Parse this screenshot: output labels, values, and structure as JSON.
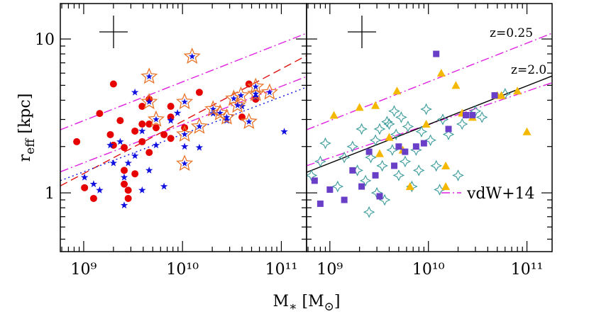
{
  "xlabel": [
    "M",
    "∗",
    " [M",
    "⊙",
    "]"
  ],
  "ylabel": [
    "r",
    "eff",
    " [kpc]"
  ],
  "chart_data": [
    {
      "type": "scatter",
      "xlog": true,
      "ylog": true,
      "xlim": [
        580000000.0,
        180000000000.0
      ],
      "ylim": [
        0.415,
        17
      ],
      "xticks": [
        {
          "value": 1000000000.0,
          "label": "10⁹"
        },
        {
          "value": 10000000000.0,
          "label": "10¹⁰"
        },
        {
          "value": 100000000000.0,
          "label": "10¹¹"
        }
      ],
      "xticks_minor": [
        600000000.0,
        700000000.0,
        800000000.0,
        900000000.0,
        2000000000.0,
        3000000000.0,
        4000000000.0,
        5000000000.0,
        6000000000.0,
        7000000000.0,
        8000000000.0,
        9000000000.0,
        20000000000.0,
        30000000000.0,
        40000000000.0,
        50000000000.0,
        60000000000.0,
        70000000000.0,
        80000000000.0,
        90000000000.0
      ],
      "yticks": [
        1,
        10
      ],
      "yticks_minor": [
        0.5,
        0.6,
        0.7,
        0.8,
        0.9,
        2,
        3,
        4,
        5,
        6,
        7,
        8,
        9
      ],
      "show_ytick_labels": true,
      "lines": [
        {
          "x": [
            580000000.0,
            180000000000.0
          ],
          "y": [
            2.57,
            10.9
          ],
          "color": "#e020e0",
          "style": "dashdot"
        },
        {
          "x": [
            580000000.0,
            180000000000.0
          ],
          "y": [
            1.37,
            5.7
          ],
          "color": "#e020e0",
          "style": "dashdot"
        },
        {
          "x": [
            580000000.0,
            180000000000.0
          ],
          "y": [
            1.11,
            7.8
          ],
          "color": "#e01010",
          "style": "dashed"
        },
        {
          "x": [
            580000000.0,
            180000000000.0
          ],
          "y": [
            1.2,
            4.86
          ],
          "color": "#1010e0",
          "style": "dotted"
        }
      ],
      "series": [
        {
          "marker": "circle",
          "color": "#e60000",
          "x": [
            850000000.0,
            1020000000.0,
            1260000000.0,
            1450000000.0,
            1860000000.0,
            2000000000.0,
            2000000000.0,
            2340000000.0,
            2570000000.0,
            2570000000.0,
            2570000000.0,
            2820000000.0,
            2820000000.0,
            3300000000.0,
            3300000000.0,
            3900000000.0,
            3900000000.0,
            3900000000.0,
            4600000000.0,
            4600000000.0,
            4600000000.0,
            5400000000.0,
            6500000000.0,
            7600000000.0,
            7600000000.0,
            7600000000.0,
            10500000000.0,
            14800000000.0,
            47000000000.0,
            55000000000.0,
            40000000000.0
          ],
          "values": [
            2.15,
            1.08,
            0.92,
            3.28,
            2.39,
            2.04,
            5.1,
            2.95,
            1.97,
            1.4,
            1.14,
            1.04,
            0.92,
            1.33,
            2.52,
            3.65,
            2.8,
            2.15,
            2.8,
            1.83,
            4.06,
            2.65,
            2.39,
            3.65,
            3.11,
            2.26,
            2.65,
            4.5,
            5.1,
            4.06,
            3.11
          ]
        },
        {
          "marker": "star",
          "color": "#1010e0",
          "x": [
            1020000000.0,
            1260000000.0,
            1450000000.0,
            1860000000.0,
            2000000000.0,
            2340000000.0,
            2570000000.0,
            2570000000.0,
            2820000000.0,
            3300000000.0,
            3300000000.0,
            3900000000.0,
            3900000000.0,
            4600000000.0,
            5400000000.0,
            6500000000.0,
            7600000000.0,
            8900000000.0,
            10500000000.0,
            14800000000.0,
            20400000000.0,
            28000000000.0,
            40000000000.0,
            107000000000.0,
            55000000000.0
          ],
          "values": [
            1.26,
            1.14,
            1.04,
            2.04,
            1.56,
            2.15,
            0.83,
            1.26,
            1.56,
            1.74,
            4.5,
            1.04,
            2.52,
            1.4,
            2.04,
            1.1,
            2.95,
            3.3,
            2.0,
            1.97,
            3.28,
            2.95,
            3.65,
            2.5,
            4.2
          ]
        },
        {
          "marker": "star-open",
          "color": "#e8742a",
          "inner_color": "#1010e0",
          "x": [
            4600000000.0,
            4600000000.0,
            5400000000.0,
            10500000000.0,
            10500000000.0,
            10500000000.0,
            12500000000.0,
            14800000000.0,
            20400000000.0,
            24000000000.0,
            28000000000.0,
            33000000000.0,
            36000000000.0,
            47000000000.0,
            55000000000.0,
            55000000000.0,
            76000000000.0,
            39000000000.0
          ],
          "values": [
            5.7,
            3.9,
            3.0,
            3.9,
            2.4,
            1.55,
            7.7,
            2.7,
            3.5,
            3.3,
            3.1,
            4.1,
            3.7,
            2.9,
            4.4,
            4.9,
            4.5,
            4.3
          ]
        }
      ]
    },
    {
      "type": "scatter",
      "xlog": true,
      "ylog": true,
      "xlim": [
        580000000.0,
        180000000000.0
      ],
      "ylim": [
        0.415,
        17
      ],
      "xticks": [
        {
          "value": 1000000000.0,
          "label": "10⁹"
        },
        {
          "value": 10000000000.0,
          "label": "10¹⁰"
        },
        {
          "value": 100000000000.0,
          "label": "10¹¹"
        }
      ],
      "xticks_minor": [
        600000000.0,
        700000000.0,
        800000000.0,
        900000000.0,
        2000000000.0,
        3000000000.0,
        4000000000.0,
        5000000000.0,
        6000000000.0,
        7000000000.0,
        8000000000.0,
        9000000000.0,
        20000000000.0,
        30000000000.0,
        40000000000.0,
        50000000000.0,
        60000000000.0,
        70000000000.0,
        80000000000.0,
        90000000000.0
      ],
      "yticks": [
        1,
        10
      ],
      "yticks_minor": [
        0.5,
        0.6,
        0.7,
        0.8,
        0.9,
        2,
        3,
        4,
        5,
        6,
        7,
        8,
        9
      ],
      "show_ytick_labels": false,
      "annotations": [
        {
          "text": "z=0.25",
          "color": "#e020e0"
        },
        {
          "text": "z=2.0",
          "color": "#e020e0"
        }
      ],
      "legend": {
        "label": "vdW+14",
        "color": "#e020e0",
        "style": "dashdot"
      },
      "lines": [
        {
          "x": [
            580000000.0,
            180000000000.0
          ],
          "y": [
            2.57,
            10.9
          ],
          "color": "#e020e0",
          "style": "dashdot"
        },
        {
          "x": [
            580000000.0,
            180000000000.0
          ],
          "y": [
            1.5,
            5.2
          ],
          "color": "#e020e0",
          "style": "dashdot"
        },
        {
          "x": [
            580000000.0,
            180000000000.0
          ],
          "y": [
            1.36,
            5.75
          ],
          "color": "#000000",
          "style": "solid"
        }
      ],
      "series": [
        {
          "marker": "star4-open",
          "color": "#3a9a9a",
          "x": [
            650000000.0,
            800000000.0,
            900000000.0,
            1200000000.0,
            1400000000.0,
            1700000000.0,
            1900000000.0,
            2100000000.0,
            2300000000.0,
            2500000000.0,
            2600000000.0,
            2900000000.0,
            3000000000.0,
            3200000000.0,
            3400000000.0,
            3600000000.0,
            3800000000.0,
            4000000000.0,
            4300000000.0,
            4500000000.0,
            4700000000.0,
            5000000000.0,
            5300000000.0,
            5800000000.0,
            6200000000.0,
            6800000000.0,
            7500000000.0,
            8500000000.0,
            9500000000.0,
            10500000000.0,
            12000000000.0,
            14000000000.0,
            16000000000.0,
            22000000000.0,
            30000000000.0,
            35000000000.0,
            60000000000.0,
            20000000000.0,
            8000000000.0,
            13000000000.0
          ],
          "values": [
            1.3,
            1.6,
            2.1,
            1.1,
            1.7,
            2.0,
            1.4,
            2.6,
            1.2,
            0.75,
            1.7,
            2.2,
            1.0,
            2.6,
            1.5,
            0.9,
            2.9,
            2.8,
            1.9,
            3.4,
            2.4,
            1.3,
            3.1,
            1.6,
            2.7,
            1.1,
            1.9,
            2.5,
            3.5,
            2.2,
            1.5,
            3.0,
            2.4,
            2.8,
            3.4,
            3.1,
            4.4,
            1.3,
            1.4,
            1.05
          ]
        },
        {
          "marker": "triangle",
          "color": "#f5b800",
          "x": [
            1100000000.0,
            2000000000.0,
            2900000000.0,
            3200000000.0,
            4000000000.0,
            4800000000.0,
            5500000000.0,
            6500000000.0,
            9500000000.0,
            13500000000.0,
            15000000000.0,
            19000000000.0,
            22000000000.0,
            28000000000.0,
            50000000000.0,
            55000000000.0,
            80000000000.0,
            100000000000.0,
            15000000000.0
          ],
          "values": [
            3.2,
            3.6,
            3.7,
            1.8,
            2.3,
            4.6,
            1.9,
            1.1,
            2.8,
            6.0,
            1.1,
            5.0,
            3.3,
            3.1,
            4.3,
            4.3,
            4.6,
            2.5,
            1.5
          ]
        },
        {
          "marker": "square",
          "color": "#6a3fc8",
          "x": [
            700000000.0,
            800000000.0,
            1000000000.0,
            1400000000.0,
            1700000000.0,
            2100000000.0,
            2500000000.0,
            2900000000.0,
            3200000000.0,
            4500000000.0,
            5000000000.0,
            5800000000.0,
            7500000000.0,
            9000000000.0,
            12000000000.0,
            16000000000.0,
            24000000000.0,
            28000000000.0,
            47000000000.0
          ],
          "values": [
            1.2,
            0.85,
            1.05,
            0.9,
            1.4,
            1.1,
            1.85,
            1.3,
            0.95,
            1.5,
            2.0,
            1.85,
            2.0,
            2.1,
            8.0,
            2.6,
            3.2,
            3.2,
            4.3
          ]
        }
      ]
    }
  ]
}
